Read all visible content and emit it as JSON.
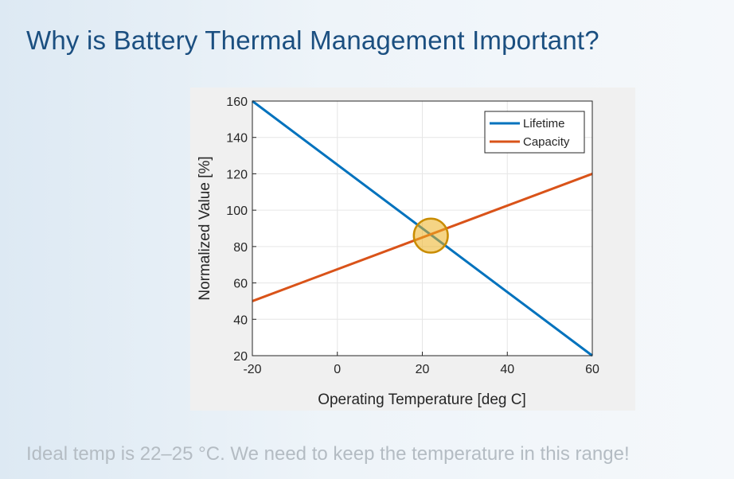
{
  "slide": {
    "title": "Why is Battery Thermal Management Important?",
    "footer": "Ideal temp is 22–25 °C. We need to keep the temperature in this range!"
  },
  "colors": {
    "lifetime": "#0072bd",
    "capacity": "#d95319",
    "highlight_fill": "#edb120",
    "highlight_stroke": "#c98c00"
  },
  "chart_data": {
    "type": "line",
    "xlabel": "Operating Temperature [deg C]",
    "ylabel": "Normalized Value [%]",
    "xlim": [
      -20,
      60
    ],
    "ylim": [
      20,
      160
    ],
    "xticks": [
      -20,
      0,
      20,
      40,
      60
    ],
    "yticks": [
      20,
      40,
      60,
      80,
      100,
      120,
      140,
      160
    ],
    "grid": true,
    "legend_position": "top-right",
    "series": [
      {
        "name": "Lifetime",
        "color": "#0072bd",
        "x": [
          -20,
          60
        ],
        "y": [
          160,
          20
        ]
      },
      {
        "name": "Capacity",
        "color": "#d95319",
        "x": [
          -20,
          60
        ],
        "y": [
          50,
          120
        ]
      }
    ],
    "highlight": {
      "x": 22,
      "y": 86,
      "radius_units": 4
    }
  }
}
